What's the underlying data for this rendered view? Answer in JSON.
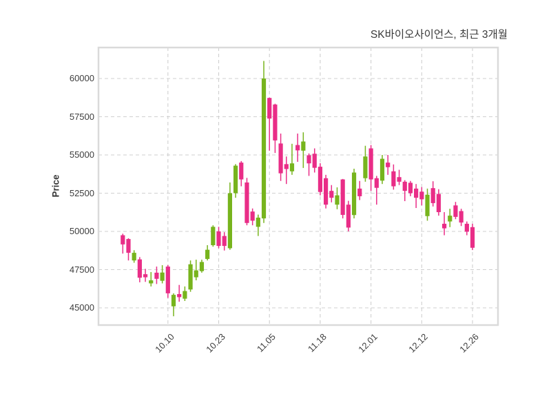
{
  "chart_data": {
    "type": "candlestick",
    "title": "SK바이오사이언스, 최근 3개월",
    "ylabel": "Price",
    "grid": "dashed, both axes",
    "legend": "none",
    "up_color": "#77b41d",
    "down_color": "#e92d87",
    "ylim": [
      43900,
      62050
    ],
    "y_ticks": [
      45000,
      47500,
      50000,
      52500,
      55000,
      57500,
      60000
    ],
    "y_tick_labels": [
      "45000",
      "47500",
      "50000",
      "52500",
      "55000",
      "57500",
      "60000"
    ],
    "x_tick_labels": [
      "10.10",
      "10.23",
      "11.05",
      "11.18",
      "12.01",
      "12.12",
      "12.26"
    ],
    "x_tick_indices": [
      8,
      17,
      26,
      35,
      44,
      53,
      62
    ],
    "candles_format": "open,high,low,close",
    "candles": [
      [
        49750,
        49850,
        48550,
        49150
      ],
      [
        49500,
        49550,
        48100,
        48600
      ],
      [
        48100,
        48770,
        47950,
        48600
      ],
      [
        48170,
        48320,
        46670,
        46970
      ],
      [
        47200,
        47550,
        46700,
        47000
      ],
      [
        46600,
        47340,
        46400,
        46800
      ],
      [
        47300,
        47700,
        46560,
        46900
      ],
      [
        46770,
        47790,
        46600,
        47310
      ],
      [
        47700,
        47800,
        45650,
        45950
      ],
      [
        45100,
        45950,
        44450,
        45850
      ],
      [
        45900,
        46500,
        45400,
        45700
      ],
      [
        45600,
        46400,
        45450,
        46100
      ],
      [
        46200,
        48100,
        46050,
        47850
      ],
      [
        47000,
        48150,
        46800,
        47450
      ],
      [
        47400,
        48150,
        47300,
        48000
      ],
      [
        48200,
        49100,
        48100,
        48800
      ],
      [
        49100,
        50400,
        49000,
        50300
      ],
      [
        50000,
        50300,
        48900,
        49050
      ],
      [
        49700,
        49950,
        48750,
        49050
      ],
      [
        48900,
        53200,
        48800,
        52500
      ],
      [
        52500,
        54400,
        52200,
        54300
      ],
      [
        54500,
        54600,
        52950,
        53400
      ],
      [
        53200,
        53500,
        50400,
        50550
      ],
      [
        51300,
        51500,
        50400,
        50700
      ],
      [
        50300,
        51100,
        49700,
        50900
      ],
      [
        50850,
        61150,
        50550,
        60000
      ],
      [
        58730,
        58750,
        55280,
        57380
      ],
      [
        58300,
        58350,
        55130,
        55950
      ],
      [
        55750,
        56400,
        53300,
        53800
      ],
      [
        54400,
        54900,
        53100,
        54080
      ],
      [
        53930,
        55730,
        53700,
        54450
      ],
      [
        55650,
        56400,
        54550,
        55300
      ],
      [
        55280,
        56480,
        54150,
        55880
      ],
      [
        54980,
        55100,
        53630,
        54450
      ],
      [
        55080,
        55430,
        53850,
        54160
      ],
      [
        54230,
        54460,
        52360,
        52580
      ],
      [
        53480,
        53700,
        51500,
        51750
      ],
      [
        52650,
        53030,
        51900,
        52200
      ],
      [
        51750,
        52880,
        51450,
        52360
      ],
      [
        53400,
        53430,
        50850,
        51080
      ],
      [
        51750,
        52000,
        50000,
        50250
      ],
      [
        51070,
        54100,
        50850,
        53850
      ],
      [
        52800,
        53300,
        52050,
        52300
      ],
      [
        53480,
        55600,
        53250,
        54900
      ],
      [
        55430,
        55650,
        52650,
        53400
      ],
      [
        53480,
        53630,
        51750,
        52850
      ],
      [
        53320,
        55000,
        53100,
        54750
      ],
      [
        54500,
        55000,
        53700,
        54200
      ],
      [
        53930,
        54380,
        52730,
        52950
      ],
      [
        53550,
        54030,
        53030,
        53250
      ],
      [
        53250,
        53350,
        51980,
        52650
      ],
      [
        53180,
        53300,
        52300,
        52500
      ],
      [
        52800,
        53100,
        51530,
        52200
      ],
      [
        52600,
        52900,
        51700,
        52100
      ],
      [
        51000,
        52800,
        50700,
        52400
      ],
      [
        52830,
        53280,
        51630,
        51850
      ],
      [
        52450,
        52760,
        51030,
        51260
      ],
      [
        50500,
        51260,
        49750,
        50200
      ],
      [
        50650,
        51480,
        50280,
        51030
      ],
      [
        51700,
        51930,
        50800,
        50950
      ],
      [
        51330,
        51480,
        50350,
        50580
      ],
      [
        50500,
        50650,
        49750,
        49980
      ],
      [
        50280,
        50500,
        48780,
        48930
      ]
    ]
  }
}
